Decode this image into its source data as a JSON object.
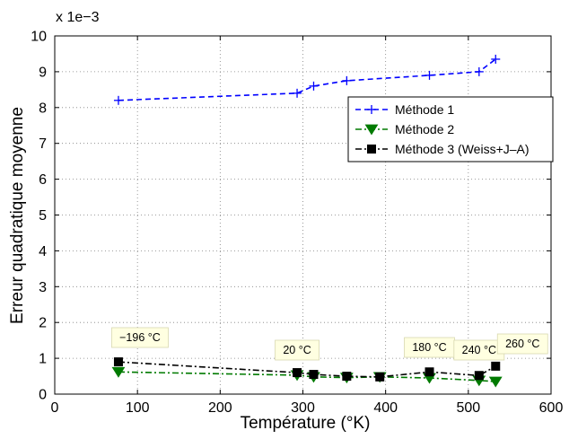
{
  "chart_data": {
    "type": "line",
    "title": "",
    "xlabel": "Température (°K)",
    "ylabel": "Erreur quadratique moyenne",
    "y_multiplier": "x 1e−3",
    "xlim": [
      0,
      600
    ],
    "ylim": [
      0,
      10
    ],
    "x_ticks": [
      "0",
      "100",
      "200",
      "300",
      "400",
      "500",
      "600"
    ],
    "y_ticks": [
      "0",
      "1",
      "2",
      "3",
      "4",
      "5",
      "6",
      "7",
      "8",
      "9",
      "10"
    ],
    "grid": true,
    "legend_position": "upper-right",
    "series": [
      {
        "name": "Méthode 1",
        "color": "#0000ff",
        "line_style": "dashed",
        "marker": "plus",
        "x": [
          77,
          293,
          313,
          353,
          453,
          513,
          533
        ],
        "y": [
          8.2,
          8.4,
          8.6,
          8.75,
          8.9,
          9.0,
          9.35
        ]
      },
      {
        "name": "Méthode 2",
        "color": "#007a00",
        "line_style": "dashdot",
        "marker": "triangle-down",
        "x": [
          77,
          293,
          313,
          353,
          393,
          453,
          513,
          533
        ],
        "y": [
          0.62,
          0.53,
          0.48,
          0.46,
          0.48,
          0.45,
          0.38,
          0.35
        ]
      },
      {
        "name": "Méthode 3 (Weiss+J–A)",
        "color": "#000000",
        "line_style": "dashdot",
        "marker": "square",
        "x": [
          77,
          293,
          313,
          353,
          393,
          453,
          513,
          533
        ],
        "y": [
          0.9,
          0.6,
          0.55,
          0.5,
          0.48,
          0.62,
          0.52,
          0.78
        ]
      }
    ],
    "annotations": [
      {
        "text": "−196 °C",
        "x": 77
      },
      {
        "text": "20 °C",
        "x": 293
      },
      {
        "text": "180 °C",
        "x": 453
      },
      {
        "text": "240 °C",
        "x": 513
      },
      {
        "text": "260 °C",
        "x": 533
      }
    ]
  }
}
